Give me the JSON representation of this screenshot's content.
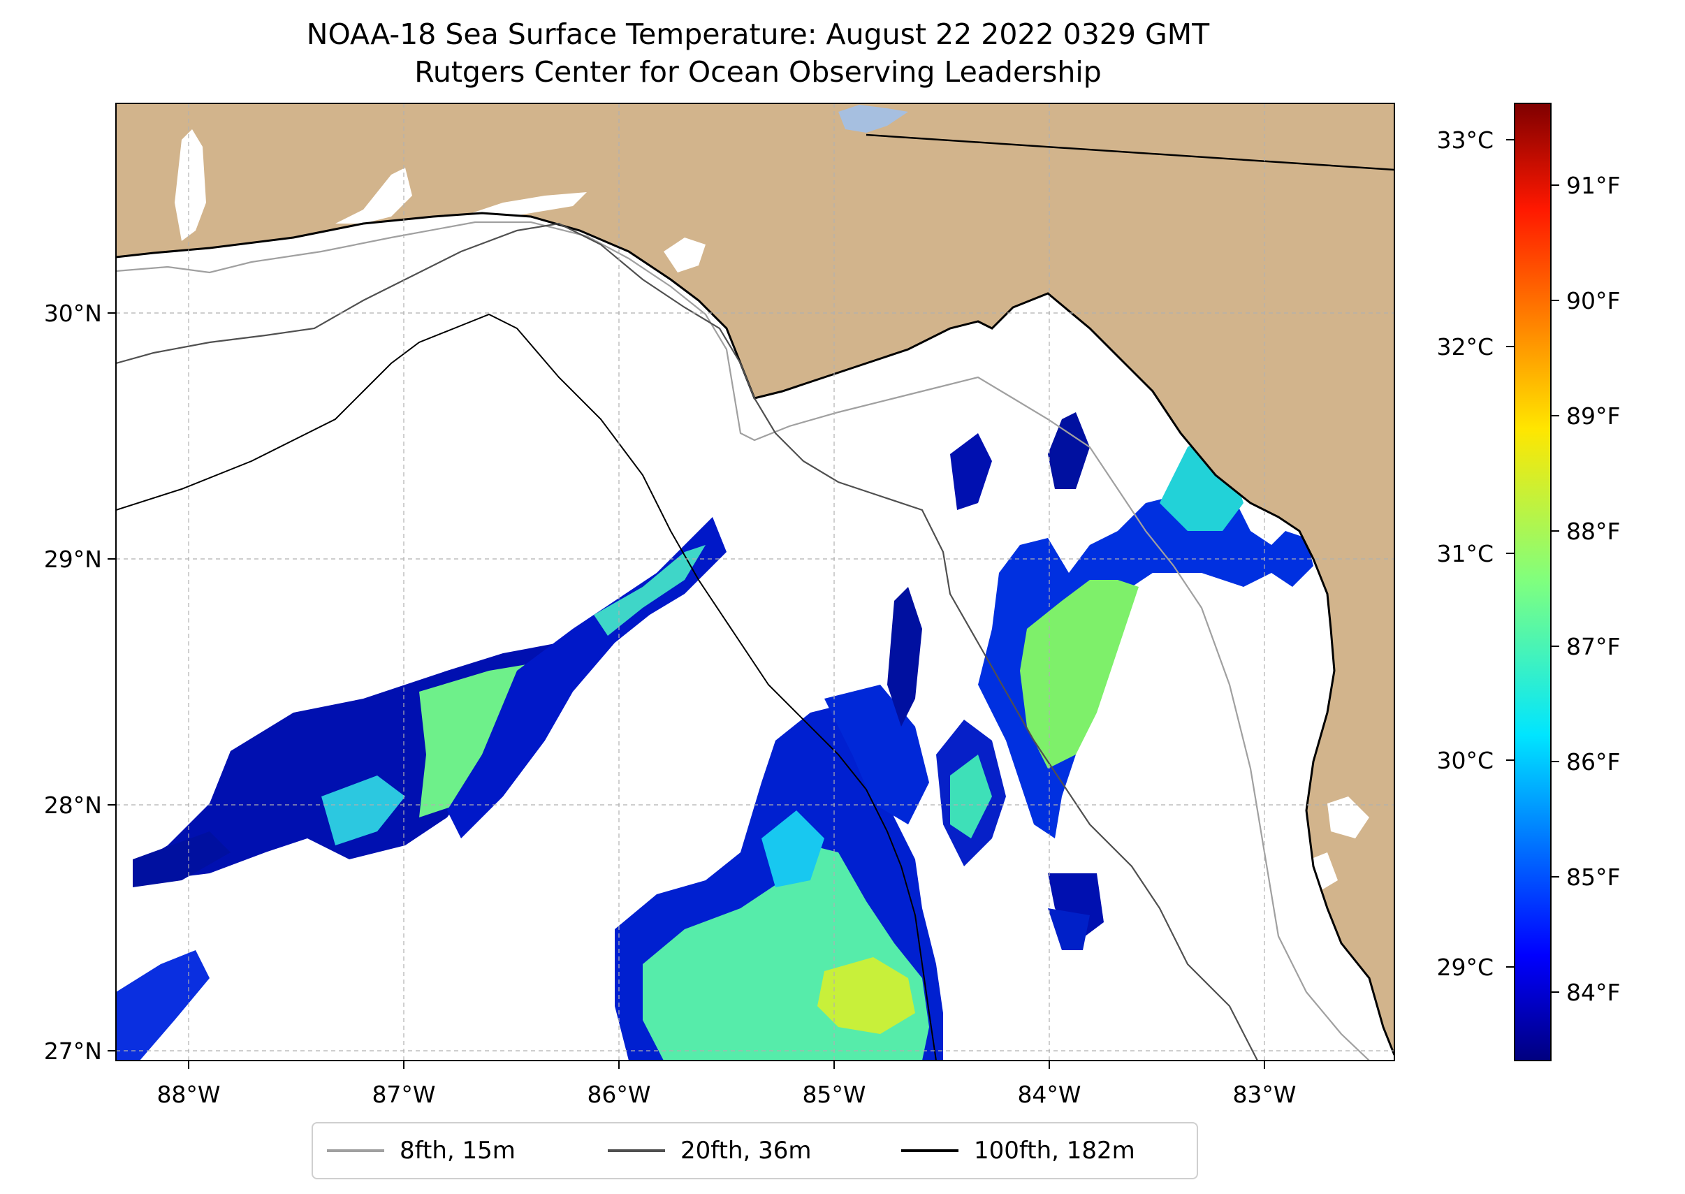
{
  "title": {
    "line1": "NOAA-18 Sea Surface Temperature: August 22 2022 0329 GMT",
    "line2": "Rutgers Center for Ocean Observing Leadership"
  },
  "map": {
    "lon_range": [
      -88.35,
      -82.4
    ],
    "lat_range": [
      26.95,
      30.85
    ],
    "lon_ticks": [
      "88°W",
      "87°W",
      "86°W",
      "85°W",
      "84°W",
      "83°W"
    ],
    "lat_ticks": [
      "30°N",
      "29°N",
      "28°N",
      "27°N"
    ],
    "colors": {
      "land": "#d2b48c",
      "ocean_nodata": "#ffffff",
      "gridline": "#b0b0b0",
      "lake": "#a6bfe0"
    }
  },
  "colorbar": {
    "celsius_ticks": [
      "33°C",
      "32°C",
      "31°C",
      "30°C",
      "29°C"
    ],
    "fahrenheit_ticks": [
      "91°F",
      "90°F",
      "89°F",
      "88°F",
      "87°F",
      "86°F",
      "85°F",
      "84°F"
    ],
    "colormap": "jet",
    "range_f": [
      83.4,
      91.6
    ]
  },
  "legend": {
    "items": [
      {
        "label": "8fth, 15m",
        "color": "#a0a0a0"
      },
      {
        "label": "20fth, 36m",
        "color": "#505050"
      },
      {
        "label": "100fth, 182m",
        "color": "#000000"
      }
    ]
  }
}
